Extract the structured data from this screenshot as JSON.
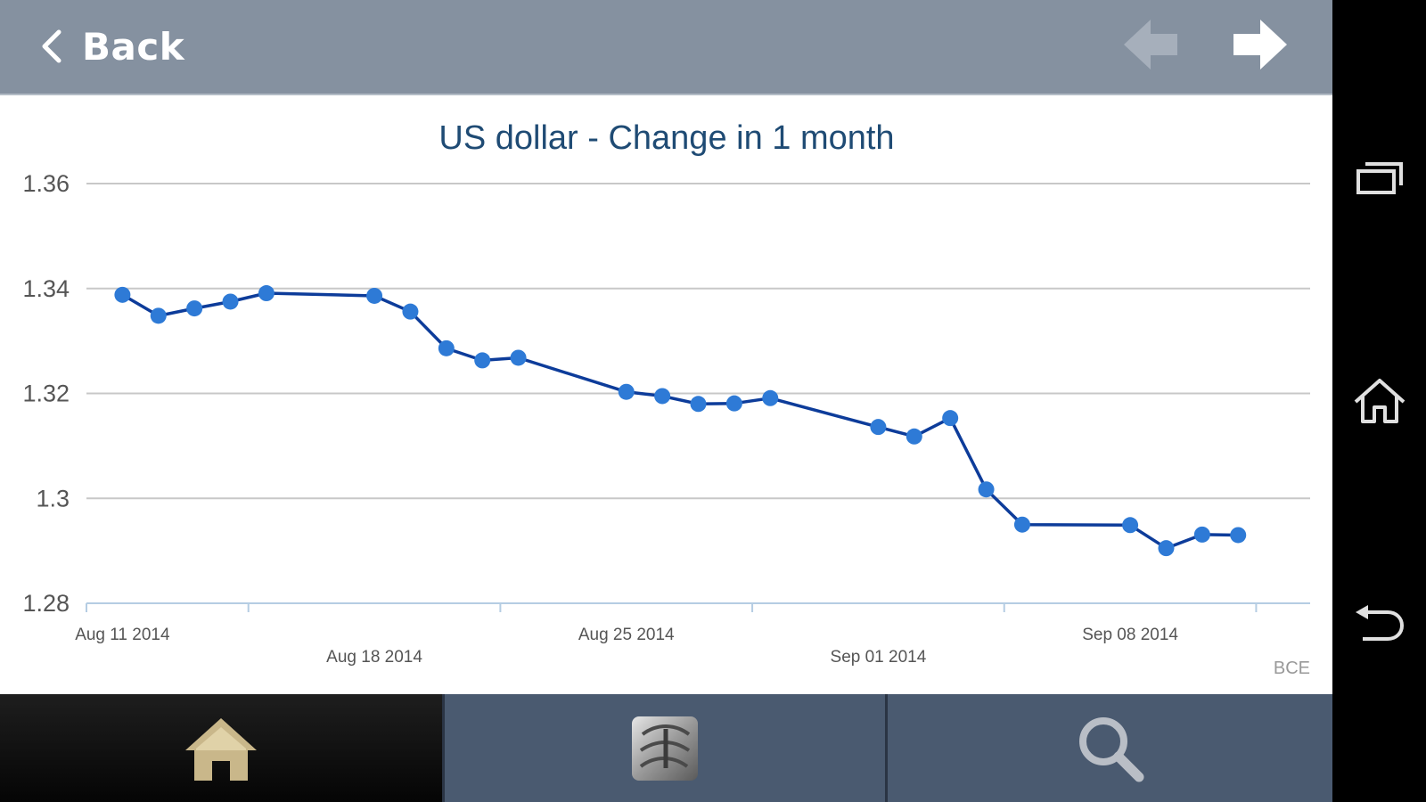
{
  "header": {
    "back_label": "Back",
    "prev_icon": "arrow-left-icon",
    "next_icon": "arrow-right-icon"
  },
  "chart_data": {
    "type": "line",
    "title": "US dollar - Change in 1 month",
    "source": "BCE",
    "xlabel": "",
    "ylabel": "",
    "ylim": [
      1.28,
      1.36
    ],
    "yticks": [
      1.28,
      1.3,
      1.32,
      1.34,
      1.36
    ],
    "ytick_labels": [
      "1.28",
      "1.3",
      "1.32",
      "1.34",
      "1.36"
    ],
    "xlim": [
      "2014-08-10",
      "2014-09-13"
    ],
    "xtick_labels": [
      {
        "date": "2014-08-11",
        "label": "Aug 11 2014"
      },
      {
        "date": "2014-08-18",
        "label": "Aug 18 2014"
      },
      {
        "date": "2014-08-25",
        "label": "Aug 25 2014"
      },
      {
        "date": "2014-09-01",
        "label": "Sep 01 2014"
      },
      {
        "date": "2014-09-08",
        "label": "Sep 08 2014"
      }
    ],
    "grid": true,
    "line_color": "#0d3c9a",
    "marker_color": "#2e7ad6",
    "points": [
      {
        "x": "2014-08-11",
        "y": 1.3388
      },
      {
        "x": "2014-08-12",
        "y": 1.3348
      },
      {
        "x": "2014-08-13",
        "y": 1.3362
      },
      {
        "x": "2014-08-14",
        "y": 1.3375
      },
      {
        "x": "2014-08-15",
        "y": 1.3391
      },
      {
        "x": "2014-08-18",
        "y": 1.3386
      },
      {
        "x": "2014-08-19",
        "y": 1.3356
      },
      {
        "x": "2014-08-20",
        "y": 1.3286
      },
      {
        "x": "2014-08-21",
        "y": 1.3263
      },
      {
        "x": "2014-08-22",
        "y": 1.3268
      },
      {
        "x": "2014-08-25",
        "y": 1.3203
      },
      {
        "x": "2014-08-26",
        "y": 1.3195
      },
      {
        "x": "2014-08-27",
        "y": 1.318
      },
      {
        "x": "2014-08-28",
        "y": 1.3181
      },
      {
        "x": "2014-08-29",
        "y": 1.3191
      },
      {
        "x": "2014-09-01",
        "y": 1.3136
      },
      {
        "x": "2014-09-02",
        "y": 1.3118
      },
      {
        "x": "2014-09-03",
        "y": 1.3153
      },
      {
        "x": "2014-09-04",
        "y": 1.3017
      },
      {
        "x": "2014-09-05",
        "y": 1.295
      },
      {
        "x": "2014-09-08",
        "y": 1.2949
      },
      {
        "x": "2014-09-09",
        "y": 1.2905
      },
      {
        "x": "2014-09-10",
        "y": 1.2931
      },
      {
        "x": "2014-09-11",
        "y": 1.293
      }
    ]
  },
  "bottom_tabs": [
    {
      "icon": "home-icon"
    },
    {
      "icon": "currencies-icon"
    },
    {
      "icon": "search-icon"
    }
  ],
  "colors": {
    "header_bg": "#8591a0",
    "title": "#1f4b74",
    "tab_active_icon": "#c9b78a",
    "tab_bg": "#4a5a70"
  }
}
